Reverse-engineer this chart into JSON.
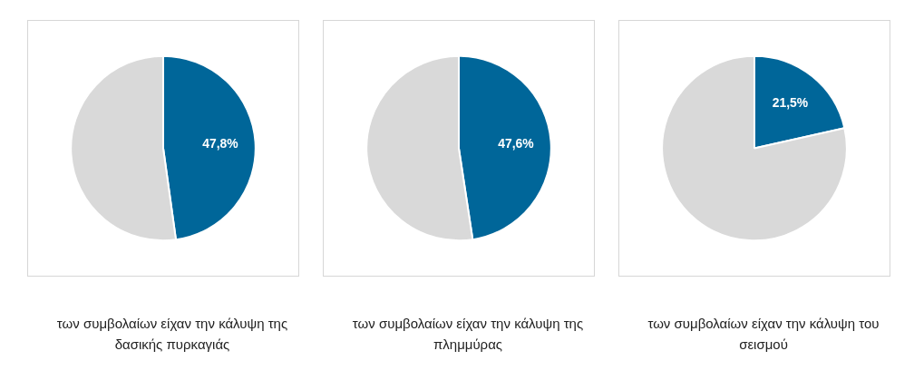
{
  "chart_data": [
    {
      "type": "pie",
      "categories": [
        null,
        null
      ],
      "values": [
        47.8,
        52.2
      ],
      "colors": [
        "#006699",
        "#d9d9d9"
      ],
      "value_labels": [
        "47,8%",
        null
      ],
      "annotations": [
        "των συμβολαίων είχαν την κάλυψη της δασικής πυρκαγιάς"
      ]
    },
    {
      "type": "pie",
      "categories": [
        null,
        null
      ],
      "values": [
        47.6,
        52.4
      ],
      "colors": [
        "#006699",
        "#d9d9d9"
      ],
      "value_labels": [
        "47,6%",
        null
      ],
      "annotations": [
        "των συμβολαίων είχαν την κάλυψη της πλημμύρας"
      ]
    },
    {
      "type": "pie",
      "categories": [
        null,
        null
      ],
      "values": [
        21.5,
        78.5
      ],
      "colors": [
        "#006699",
        "#d9d9d9"
      ],
      "value_labels": [
        "21,5%",
        null
      ],
      "annotations": [
        "των συμβολαίων είχαν την κάλυψη του σεισμού"
      ]
    }
  ]
}
